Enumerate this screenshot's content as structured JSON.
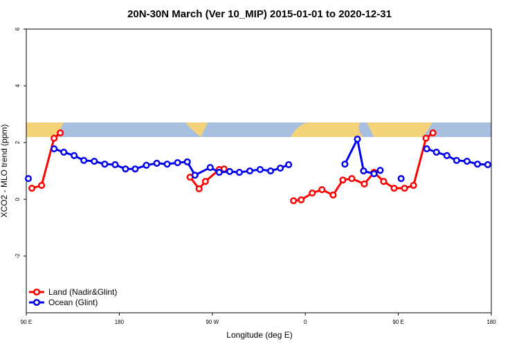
{
  "chart_data": {
    "type": "line",
    "title": "20N-30N March (Ver 10_MIP)   2015-01-01 to 2020-12-31",
    "x_label": "Longitude (deg E)",
    "y_label": "XCO2 - MLO trend (ppm)",
    "xlim": [
      90,
      540
    ],
    "ylim": [
      -4,
      6
    ],
    "xticks": [
      {
        "value": 90,
        "label": "90 E"
      },
      180,
      {
        "value": 270,
        "label": "90 W"
      },
      {
        "value": 360,
        "label": "0"
      },
      {
        "value": 450,
        "label": "90 E"
      },
      {
        "value": 540,
        "label": "180"
      }
    ],
    "yticks": [
      -2,
      0,
      2,
      4,
      6
    ],
    "legend": "bottom-left",
    "series": [
      {
        "name": "Land (Nadir&Glint)",
        "color": "#ff0000",
        "x": [
          95.4,
          104.8,
          116.9,
          122.9,
          null,
          248.5,
          257.2,
          263.3,
          276.7,
          281.4,
          null,
          348.6,
          356.0,
          366.7,
          376.1,
          386.9,
          396.3,
          405.0,
          417.1,
          426.5,
          435.8,
          445.9,
          456.0,
          464.7,
          476.8,
          483.5
        ],
        "values": [
          0.39,
          0.49,
          2.15,
          2.34,
          null,
          0.78,
          0.37,
          0.63,
          1.05,
          1.07,
          null,
          -0.05,
          -0.02,
          0.22,
          0.34,
          0.15,
          0.68,
          0.73,
          0.54,
          0.95,
          0.63,
          0.39,
          0.39,
          0.49,
          2.15,
          2.34
        ]
      },
      {
        "name": "Ocean (Glint)",
        "color": "#0000ee",
        "x": [
          92.0,
          null,
          116.9,
          126.3,
          136.3,
          145.7,
          155.8,
          165.9,
          176.0,
          186.0,
          195.4,
          206.2,
          216.3,
          226.3,
          236.4,
          245.8,
          253.2,
          268.0,
          276.7,
          286.8,
          296.2,
          306.3,
          316.3,
          326.4,
          335.8,
          343.9,
          null,
          398.3,
          410.4,
          416.4,
          426.5,
          432.5,
          null,
          452.7,
          null,
          477.5,
          486.9,
          497.0,
          506.4,
          516.5,
          526.6,
          536.6
        ],
        "values": [
          0.73,
          null,
          1.78,
          1.66,
          1.54,
          1.37,
          1.34,
          1.24,
          1.22,
          1.07,
          1.07,
          1.2,
          1.27,
          1.24,
          1.29,
          1.32,
          0.85,
          1.12,
          0.95,
          0.98,
          0.95,
          1.0,
          1.05,
          1.0,
          1.1,
          1.22,
          null,
          1.24,
          2.12,
          1.0,
          0.9,
          1.02,
          null,
          0.73,
          null,
          1.78,
          1.66,
          1.54,
          1.37,
          1.34,
          1.24,
          1.22
        ]
      }
    ]
  }
}
